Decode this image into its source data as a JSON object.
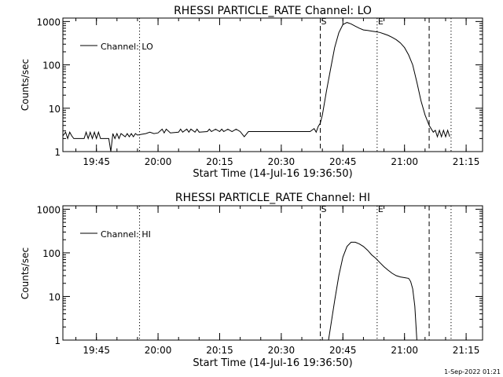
{
  "chart_data": [
    {
      "type": "line",
      "title": "RHESSI PARTICLE_RATE Channel: LO",
      "xlabel": "Start Time (14-Jul-16 19:36:50)",
      "ylabel": "Counts/sec",
      "yscale": "log",
      "ylim": [
        1,
        1200
      ],
      "xlim": [
        "19:36:50",
        "21:19:00"
      ],
      "x_ticks": [
        "19:45",
        "20:00",
        "20:15",
        "20:30",
        "20:45",
        "21:00",
        "21:15"
      ],
      "y_ticks": [
        "1",
        "10",
        "100",
        "1000"
      ],
      "legend": {
        "label": "Channel: LO",
        "placement": "top-left"
      },
      "markers": [
        {
          "label": "S",
          "time": "20:39:30",
          "style": "dashed"
        },
        {
          "label": "E",
          "time": "20:53:20",
          "style": "dotted"
        },
        {
          "label": "",
          "time": "21:06:00",
          "style": "dashed"
        },
        {
          "label": "",
          "time": "19:55:30",
          "style": "dotted"
        },
        {
          "label": "",
          "time": "21:11:20",
          "style": "dotted"
        }
      ],
      "series": [
        {
          "name": "Channel: LO",
          "x": [
            "19:36:50",
            "19:37:30",
            "19:38:00",
            "19:38:30",
            "19:39:00",
            "19:39:30",
            "19:40:00",
            "19:42:00",
            "19:42:30",
            "19:43:00",
            "19:43:30",
            "19:44:00",
            "19:44:30",
            "19:45:00",
            "19:45:30",
            "19:46:00",
            "19:48:00",
            "19:48:30",
            "19:49:00",
            "19:49:30",
            "19:50:00",
            "19:50:30",
            "19:51:00",
            "19:52:00",
            "19:52:30",
            "19:53:00",
            "19:53:30",
            "19:54:00",
            "19:54:30",
            "19:55:00",
            "19:56:00",
            "19:57:00",
            "19:58:00",
            "19:59:00",
            "20:00:00",
            "20:01:00",
            "20:01:30",
            "20:02:00",
            "20:03:00",
            "20:05:00",
            "20:05:30",
            "20:06:00",
            "20:07:00",
            "20:07:30",
            "20:08:00",
            "20:09:00",
            "20:09:30",
            "20:10:00",
            "20:12:00",
            "20:12:30",
            "20:13:00",
            "20:14:00",
            "20:15:00",
            "20:15:30",
            "20:16:00",
            "20:17:00",
            "20:18:00",
            "20:19:00",
            "20:20:00",
            "20:21:00",
            "20:22:00",
            "20:30:00",
            "20:37:00",
            "20:38:00",
            "20:38:30",
            "20:39:00",
            "20:39:30",
            "20:40:00",
            "20:41:00",
            "20:42:00",
            "20:43:00",
            "20:44:00",
            "20:45:00",
            "20:46:00",
            "20:47:00",
            "20:48:00",
            "20:49:00",
            "20:50:00",
            "20:51:00",
            "20:52:00",
            "20:53:00",
            "20:54:00",
            "20:55:00",
            "20:56:00",
            "20:57:00",
            "20:58:00",
            "20:59:00",
            "21:00:00",
            "21:01:00",
            "21:02:00",
            "21:03:00",
            "21:04:00",
            "21:05:00",
            "21:06:00",
            "21:07:00",
            "21:07:30",
            "21:08:00",
            "21:08:30",
            "21:09:00",
            "21:09:30",
            "21:10:00",
            "21:10:30",
            "21:11:00"
          ],
          "values": [
            2.3,
            2.8,
            2.0,
            2.8,
            2.3,
            2.0,
            2.0,
            2.0,
            2.8,
            2.0,
            2.8,
            2.0,
            2.8,
            2.0,
            2.8,
            2.0,
            2.0,
            1.0,
            2.6,
            2.0,
            2.6,
            2.0,
            2.6,
            2.2,
            2.6,
            2.2,
            2.6,
            2.2,
            2.6,
            2.4,
            2.5,
            2.6,
            2.8,
            2.6,
            2.7,
            3.3,
            2.7,
            3.3,
            2.7,
            2.8,
            3.3,
            2.8,
            3.3,
            2.8,
            3.3,
            2.8,
            3.3,
            2.8,
            2.9,
            3.3,
            2.9,
            3.3,
            2.9,
            3.3,
            2.9,
            3.3,
            2.9,
            3.3,
            2.9,
            2.2,
            2.9,
            2.9,
            2.9,
            3.4,
            2.8,
            3.8,
            4.5,
            7,
            25,
            80,
            250,
            550,
            850,
            950,
            880,
            780,
            700,
            640,
            620,
            600,
            580,
            560,
            520,
            480,
            430,
            380,
            320,
            250,
            170,
            100,
            40,
            15,
            7,
            4,
            2.8,
            3.1,
            2.2,
            3.1,
            2.2,
            3.1,
            2.2,
            3.1,
            2.2
          ]
        }
      ]
    },
    {
      "type": "line",
      "title": "RHESSI PARTICLE_RATE Channel: HI",
      "xlabel": "Start Time (14-Jul-16 19:36:50)",
      "ylabel": "Counts/sec",
      "yscale": "log",
      "ylim": [
        1,
        1200
      ],
      "xlim": [
        "19:36:50",
        "21:19:00"
      ],
      "x_ticks": [
        "19:45",
        "20:00",
        "20:15",
        "20:30",
        "20:45",
        "21:00",
        "21:15"
      ],
      "y_ticks": [
        "1",
        "10",
        "100",
        "1000"
      ],
      "legend": {
        "label": "Channel: HI",
        "placement": "top-left"
      },
      "markers": [
        {
          "label": "S",
          "time": "20:39:30",
          "style": "dashed"
        },
        {
          "label": "E",
          "time": "20:53:20",
          "style": "dotted"
        },
        {
          "label": "",
          "time": "21:06:00",
          "style": "dashed"
        },
        {
          "label": "",
          "time": "19:55:30",
          "style": "dotted"
        },
        {
          "label": "",
          "time": "21:11:20",
          "style": "dotted"
        }
      ],
      "series": [
        {
          "name": "Channel: HI",
          "x": [
            "20:41:30",
            "20:42:00",
            "20:43:00",
            "20:44:00",
            "20:45:00",
            "20:46:00",
            "20:47:00",
            "20:48:00",
            "20:49:00",
            "20:50:00",
            "20:51:00",
            "20:52:00",
            "20:53:00",
            "20:54:00",
            "20:55:00",
            "20:56:00",
            "20:57:00",
            "20:58:00",
            "20:59:00",
            "21:00:00",
            "21:01:00",
            "21:01:30",
            "21:02:00",
            "21:02:30",
            "21:03:00"
          ],
          "values": [
            1,
            2,
            8,
            30,
            80,
            140,
            175,
            175,
            160,
            140,
            115,
            90,
            75,
            60,
            48,
            40,
            34,
            30,
            28,
            27,
            26,
            22,
            15,
            6,
            1
          ]
        }
      ]
    }
  ],
  "footer": {
    "date_stamp": "1-Sep-2022 01:21"
  }
}
